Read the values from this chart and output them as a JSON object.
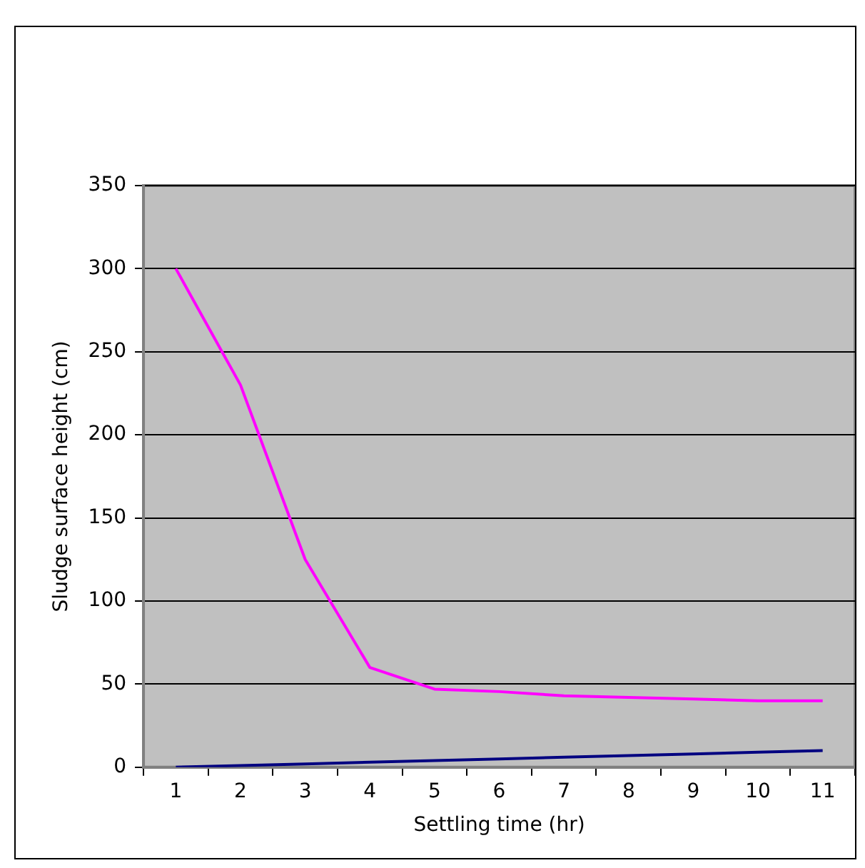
{
  "chart_data": {
    "type": "line",
    "xlabel": "Settling time (hr)",
    "ylabel": "Sludge surface height (cm)",
    "categories": [
      "1",
      "2",
      "3",
      "4",
      "5",
      "6",
      "7",
      "8",
      "9",
      "10",
      "11"
    ],
    "series": [
      {
        "color": "#ff00ff",
        "values": [
          300,
          230,
          125,
          60,
          47,
          45.5,
          43,
          42,
          41,
          40,
          40
        ]
      },
      {
        "color": "#000080",
        "values": [
          0,
          1,
          2,
          3,
          4,
          5,
          6,
          7,
          8,
          9,
          10
        ]
      }
    ],
    "ylim": [
      0,
      350
    ],
    "yticks": [
      0,
      50,
      100,
      150,
      200,
      250,
      300,
      350
    ],
    "grid": "y",
    "legend": false,
    "marker": "none",
    "line_style": "solid"
  }
}
